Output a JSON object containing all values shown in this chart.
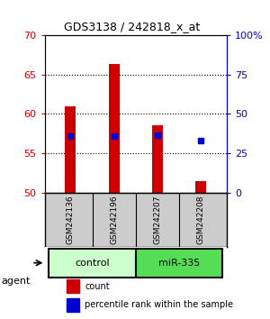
{
  "title": "GDS3138 / 242818_x_at",
  "samples": [
    "GSM242136",
    "GSM242196",
    "GSM242207",
    "GSM242208"
  ],
  "bar_values": [
    61.0,
    66.3,
    58.6,
    51.5
  ],
  "bar_base": 50.0,
  "bar_color": "#cc0000",
  "dot_percentiles": [
    36,
    36,
    36.5,
    33
  ],
  "dot_color": "#0000cc",
  "ylim_left": [
    50,
    70
  ],
  "yticks_left": [
    50,
    55,
    60,
    65,
    70
  ],
  "ylim_right": [
    0,
    100
  ],
  "yticks_right": [
    0,
    25,
    50,
    75,
    100
  ],
  "ytick_labels_right": [
    "0",
    "25",
    "50",
    "75",
    "100%"
  ],
  "left_tick_color": "#cc0000",
  "right_tick_color": "#0000cc",
  "groups": [
    {
      "label": "control",
      "samples": [
        0,
        1
      ],
      "color": "#ccffcc"
    },
    {
      "label": "miR-335",
      "samples": [
        2,
        3
      ],
      "color": "#55dd55"
    }
  ],
  "agent_label": "agent",
  "legend_items": [
    {
      "color": "#cc0000",
      "label": "count"
    },
    {
      "color": "#0000cc",
      "label": "percentile rank within the sample"
    }
  ],
  "bar_width": 0.25,
  "sample_box_color": "#cccccc",
  "sample_box_edge": "#000000"
}
